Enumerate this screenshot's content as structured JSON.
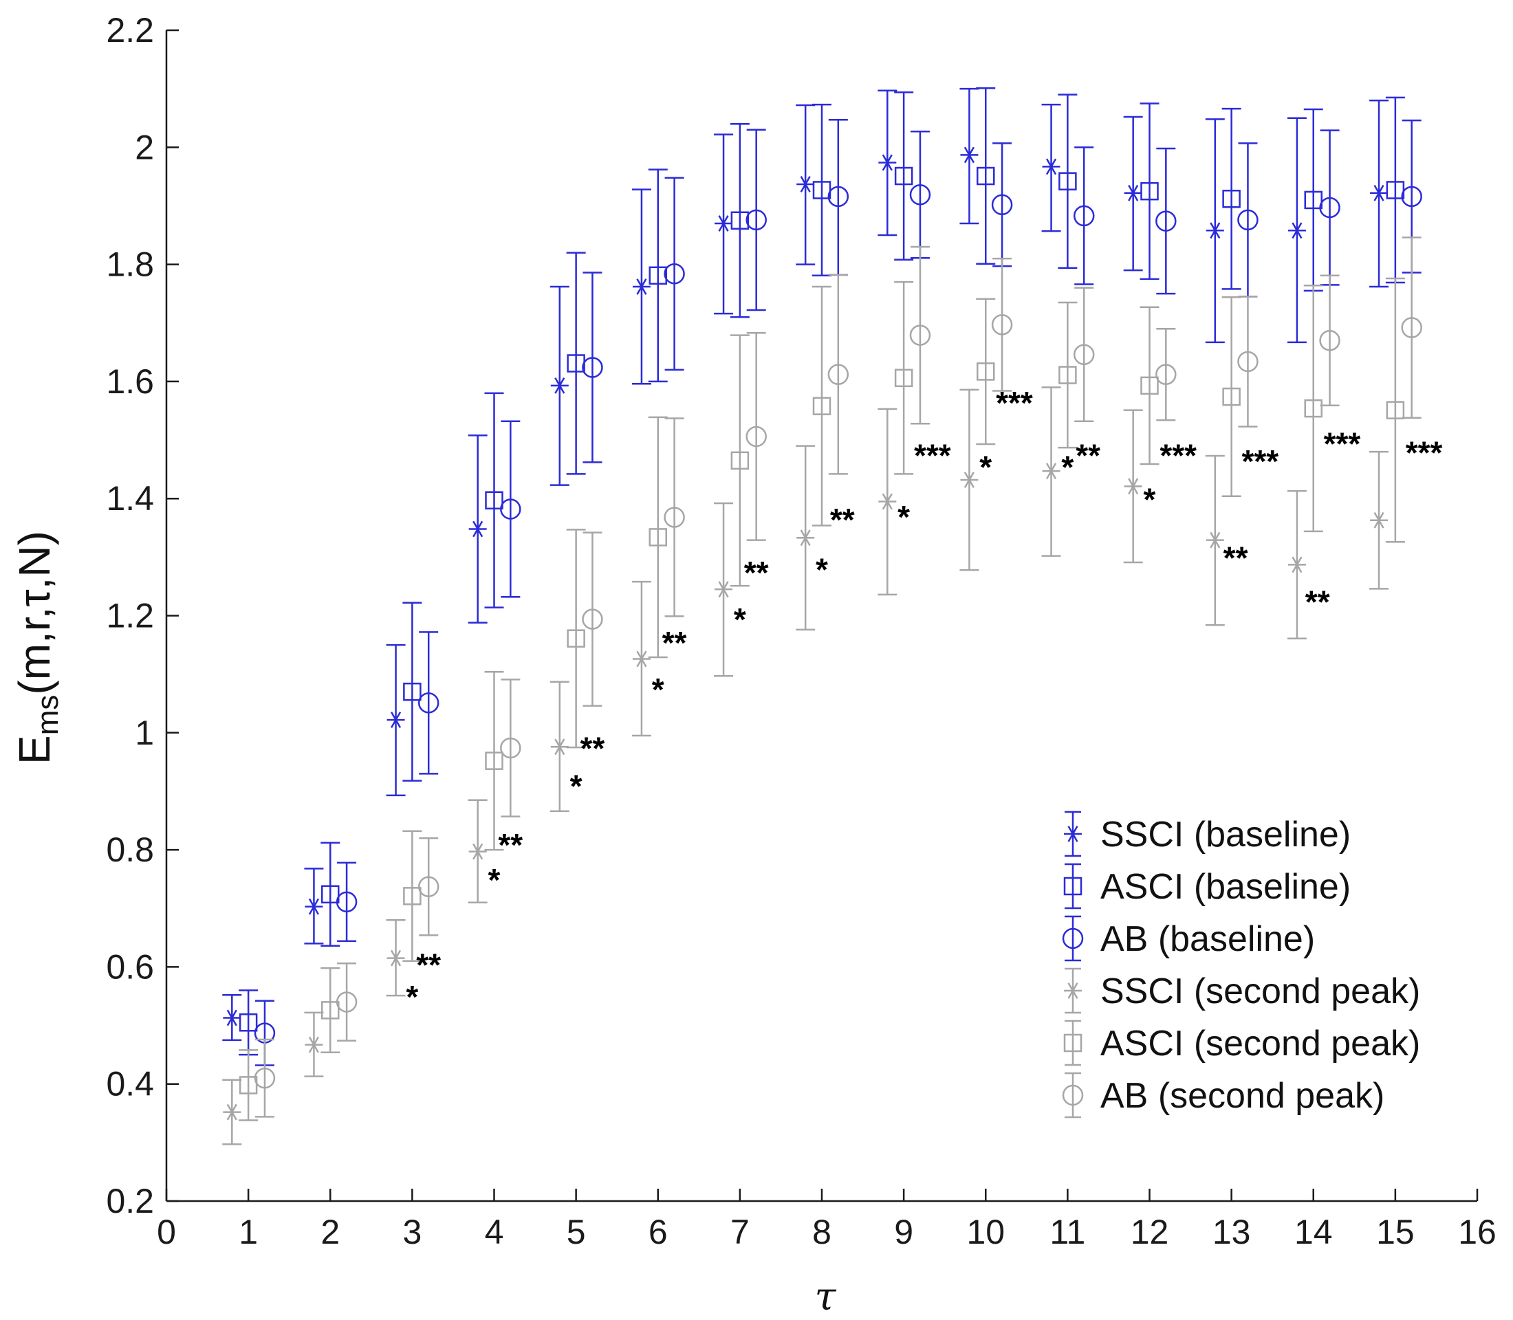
{
  "chart_data": {
    "type": "scatter",
    "title": "",
    "xlabel": "τ",
    "ylabel_main": "E",
    "ylabel_sub": "ms",
    "ylabel_args": "(m,r,τ,N)",
    "xlim": [
      0,
      16
    ],
    "ylim": [
      0.2,
      2.2
    ],
    "x_ticks": [
      0,
      1,
      2,
      3,
      4,
      5,
      6,
      7,
      8,
      9,
      10,
      11,
      12,
      13,
      14,
      15,
      16
    ],
    "x_tick_labels": [
      "0",
      "1",
      "2",
      "3",
      "4",
      "5",
      "6",
      "7",
      "8",
      "9",
      "10",
      "11",
      "12",
      "13",
      "14",
      "15",
      "16"
    ],
    "y_ticks": [
      0.2,
      0.4,
      0.6,
      0.8,
      1.0,
      1.2,
      1.4,
      1.6,
      1.8,
      2.0,
      2.2
    ],
    "y_tick_labels": [
      "0.2",
      "0.4",
      "0.6",
      "0.8",
      "1",
      "1.2",
      "1.4",
      "1.6",
      "1.8",
      "2",
      "2.2"
    ],
    "grid": false,
    "legend_position": "bottom-right",
    "colors": {
      "baseline": "#2b2bd9",
      "second_peak": "#a6a6a6",
      "axis": "#1a1a1a"
    },
    "series": [
      {
        "name": "SSCI (baseline)",
        "group": "baseline",
        "marker": "star",
        "x_offset": -0.2,
        "x": [
          1,
          2,
          3,
          4,
          5,
          6,
          7,
          8,
          9,
          10,
          11,
          12,
          13,
          14,
          15
        ],
        "y": [
          0.513,
          0.703,
          1.022,
          1.348,
          1.593,
          1.762,
          1.87,
          1.937,
          1.974,
          1.987,
          1.967,
          1.922,
          1.858,
          1.858,
          1.922
        ],
        "upper": [
          0.552,
          0.768,
          1.15,
          1.508,
          1.762,
          1.928,
          2.022,
          2.072,
          2.097,
          2.1,
          2.073,
          2.052,
          2.048,
          2.05,
          2.08
        ],
        "lower": [
          0.475,
          0.64,
          0.893,
          1.188,
          1.423,
          1.596,
          1.716,
          1.8,
          1.85,
          1.87,
          1.857,
          1.79,
          1.667,
          1.667,
          1.762
        ]
      },
      {
        "name": "ASCI (baseline)",
        "group": "baseline",
        "marker": "square",
        "x_offset": 0.0,
        "x": [
          1,
          2,
          3,
          4,
          5,
          6,
          7,
          8,
          9,
          10,
          11,
          12,
          13,
          14,
          15
        ],
        "y": [
          0.505,
          0.724,
          1.07,
          1.397,
          1.631,
          1.781,
          1.875,
          1.927,
          1.951,
          1.951,
          1.942,
          1.925,
          1.912,
          1.91,
          1.927
        ],
        "upper": [
          0.56,
          0.812,
          1.222,
          1.58,
          1.82,
          1.962,
          2.04,
          2.073,
          2.094,
          2.101,
          2.09,
          2.075,
          2.066,
          2.065,
          2.085
        ],
        "lower": [
          0.45,
          0.636,
          0.918,
          1.214,
          1.442,
          1.6,
          1.71,
          1.781,
          1.808,
          1.801,
          1.794,
          1.775,
          1.758,
          1.755,
          1.769
        ]
      },
      {
        "name": "AB (baseline)",
        "group": "baseline",
        "marker": "circle",
        "x_offset": 0.2,
        "x": [
          1,
          2,
          3,
          4,
          5,
          6,
          7,
          8,
          9,
          10,
          11,
          12,
          13,
          14,
          15
        ],
        "y": [
          0.487,
          0.711,
          1.051,
          1.382,
          1.624,
          1.784,
          1.876,
          1.916,
          1.919,
          1.902,
          1.883,
          1.874,
          1.876,
          1.897,
          1.916
        ],
        "upper": [
          0.542,
          0.778,
          1.172,
          1.532,
          1.786,
          1.948,
          2.03,
          2.047,
          2.027,
          2.007,
          2.0,
          1.998,
          2.007,
          2.029,
          2.046
        ],
        "lower": [
          0.432,
          0.644,
          0.93,
          1.232,
          1.462,
          1.62,
          1.722,
          1.782,
          1.811,
          1.797,
          1.766,
          1.75,
          1.745,
          1.765,
          1.786
        ]
      },
      {
        "name": "SSCI (second peak)",
        "group": "second_peak",
        "marker": "star",
        "x_offset": -0.2,
        "x": [
          1,
          2,
          3,
          4,
          5,
          6,
          7,
          8,
          9,
          10,
          11,
          12,
          13,
          14,
          15
        ],
        "y": [
          0.352,
          0.467,
          0.615,
          0.797,
          0.976,
          1.126,
          1.245,
          1.333,
          1.395,
          1.432,
          1.447,
          1.421,
          1.329,
          1.287,
          1.363
        ],
        "upper": [
          0.407,
          0.522,
          0.68,
          0.885,
          1.087,
          1.258,
          1.392,
          1.49,
          1.553,
          1.586,
          1.59,
          1.551,
          1.473,
          1.413,
          1.48
        ],
        "lower": [
          0.297,
          0.413,
          0.551,
          0.71,
          0.866,
          0.995,
          1.097,
          1.176,
          1.236,
          1.278,
          1.302,
          1.291,
          1.184,
          1.161,
          1.246
        ]
      },
      {
        "name": "ASCI (second peak)",
        "group": "second_peak",
        "marker": "square",
        "x_offset": 0.0,
        "x": [
          1,
          2,
          3,
          4,
          5,
          6,
          7,
          8,
          9,
          10,
          11,
          12,
          13,
          14,
          15
        ],
        "y": [
          0.398,
          0.526,
          0.721,
          0.952,
          1.161,
          1.334,
          1.465,
          1.558,
          1.606,
          1.617,
          1.611,
          1.593,
          1.574,
          1.554,
          1.551
        ],
        "upper": [
          0.458,
          0.598,
          0.832,
          1.104,
          1.347,
          1.539,
          1.679,
          1.762,
          1.77,
          1.741,
          1.735,
          1.727,
          1.744,
          1.764,
          1.776
        ],
        "lower": [
          0.338,
          0.454,
          0.61,
          0.8,
          0.975,
          1.129,
          1.251,
          1.354,
          1.442,
          1.493,
          1.487,
          1.459,
          1.404,
          1.344,
          1.326
        ]
      },
      {
        "name": "AB (second peak)",
        "group": "second_peak",
        "marker": "circle",
        "x_offset": 0.2,
        "x": [
          1,
          2,
          3,
          4,
          5,
          6,
          7,
          8,
          9,
          10,
          11,
          12,
          13,
          14,
          15
        ],
        "y": [
          0.41,
          0.54,
          0.737,
          0.974,
          1.194,
          1.368,
          1.506,
          1.612,
          1.679,
          1.697,
          1.646,
          1.612,
          1.634,
          1.67,
          1.692
        ],
        "upper": [
          0.476,
          0.606,
          0.82,
          1.091,
          1.342,
          1.537,
          1.683,
          1.782,
          1.83,
          1.81,
          1.76,
          1.69,
          1.745,
          1.781,
          1.846
        ],
        "lower": [
          0.344,
          0.474,
          0.654,
          0.857,
          1.046,
          1.199,
          1.329,
          1.442,
          1.528,
          1.584,
          1.532,
          1.534,
          1.523,
          1.559,
          1.538
        ]
      }
    ],
    "annotations": [
      {
        "text": "**",
        "x": 3.2,
        "y": 0.62
      },
      {
        "text": "*",
        "x": 3.0,
        "y": 0.565
      },
      {
        "text": "**",
        "x": 4.2,
        "y": 0.825
      },
      {
        "text": "*",
        "x": 4.0,
        "y": 0.765
      },
      {
        "text": "**",
        "x": 5.2,
        "y": 0.99
      },
      {
        "text": "*",
        "x": 5.0,
        "y": 0.925
      },
      {
        "text": "**",
        "x": 6.2,
        "y": 1.17
      },
      {
        "text": "*",
        "x": 6.0,
        "y": 1.09
      },
      {
        "text": "**",
        "x": 7.2,
        "y": 1.29
      },
      {
        "text": "*",
        "x": 7.0,
        "y": 1.21
      },
      {
        "text": "**",
        "x": 8.25,
        "y": 1.38
      },
      {
        "text": "*",
        "x": 8.0,
        "y": 1.295
      },
      {
        "text": "***",
        "x": 9.35,
        "y": 1.49
      },
      {
        "text": "*",
        "x": 9.0,
        "y": 1.385
      },
      {
        "text": "***",
        "x": 10.35,
        "y": 1.58
      },
      {
        "text": "*",
        "x": 10.0,
        "y": 1.47
      },
      {
        "text": "**",
        "x": 11.25,
        "y": 1.49
      },
      {
        "text": "*",
        "x": 11.0,
        "y": 1.47
      },
      {
        "text": "***",
        "x": 12.35,
        "y": 1.49
      },
      {
        "text": "*",
        "x": 12.0,
        "y": 1.415
      },
      {
        "text": "***",
        "x": 13.35,
        "y": 1.48
      },
      {
        "text": "**",
        "x": 13.05,
        "y": 1.315
      },
      {
        "text": "***",
        "x": 14.35,
        "y": 1.51
      },
      {
        "text": "**",
        "x": 14.05,
        "y": 1.24
      },
      {
        "text": "***",
        "x": 15.35,
        "y": 1.495
      }
    ]
  }
}
